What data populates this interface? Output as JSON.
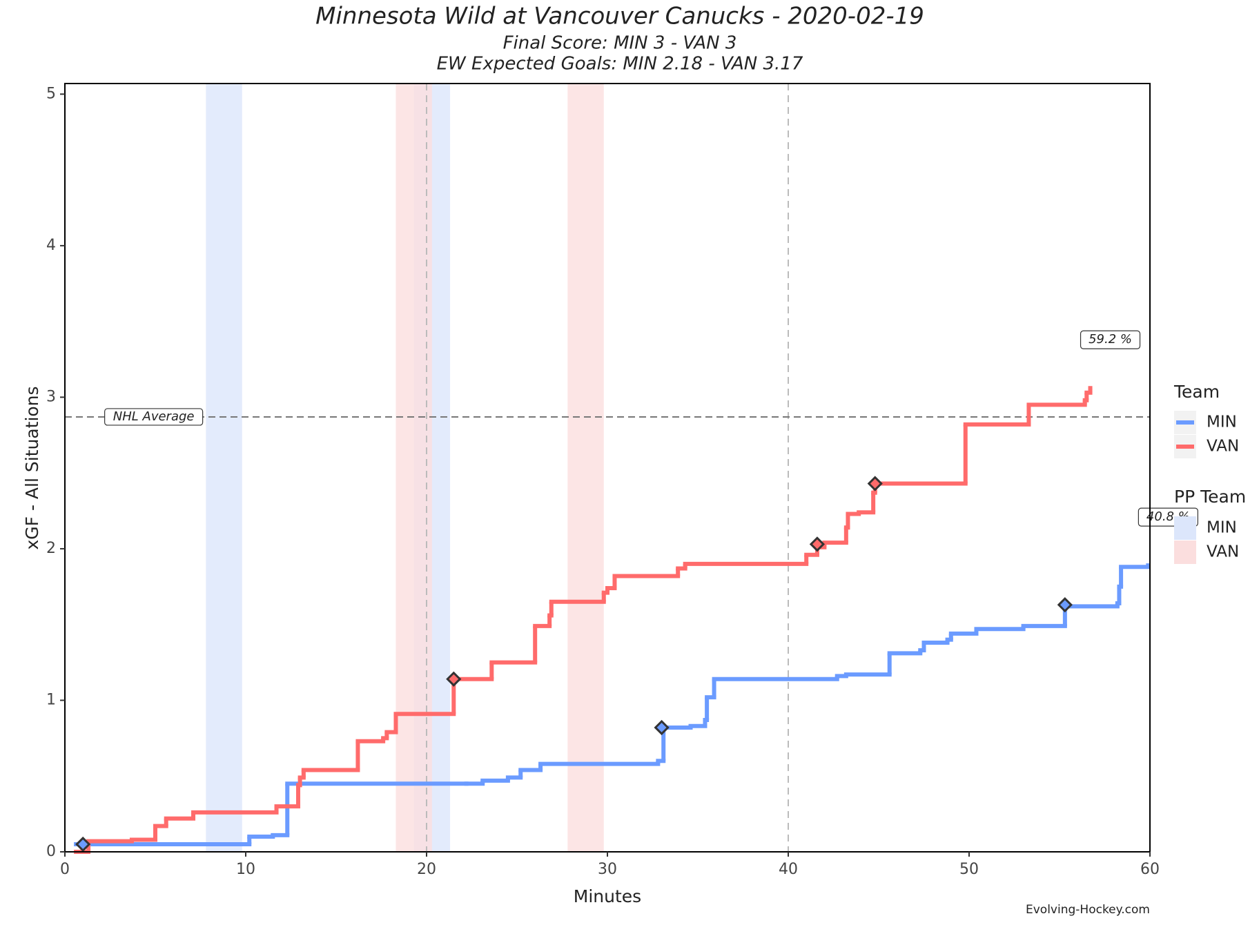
{
  "chart_data": {
    "type": "step",
    "title": "Minnesota Wild at Vancouver Canucks - 2020-02-19",
    "subtitle": [
      "Final Score: MIN 3 - VAN 3",
      "EW Expected Goals: MIN 2.18 - VAN 3.17"
    ],
    "x_label": "Minutes",
    "y_label": "xGF - All Situations",
    "xlim": [
      0,
      60
    ],
    "ylim": [
      0,
      5.07
    ],
    "xticks": [
      0,
      10,
      20,
      30,
      40,
      50,
      60
    ],
    "yticks": [
      0,
      1,
      2,
      3,
      4,
      5
    ],
    "legend_title": "Team",
    "series": [
      {
        "name": "MIN",
        "color": "#6b9bff",
        "x": [
          0.5,
          10.2,
          11.5,
          12.3,
          22.2,
          23.1,
          24.5,
          25.2,
          26.3,
          32.8,
          33.1,
          34.6,
          35.4,
          35.5,
          35.9,
          42.7,
          43.2,
          45.6,
          47.3,
          47.5,
          48.8,
          49.0,
          50.4,
          53.0,
          55.3,
          58.2,
          58.3,
          58.4,
          59.9
        ],
        "values": [
          0.05,
          0.1,
          0.11,
          0.45,
          0.45,
          0.47,
          0.49,
          0.54,
          0.58,
          0.6,
          0.82,
          0.83,
          0.87,
          1.02,
          1.14,
          1.16,
          1.17,
          1.31,
          1.33,
          1.38,
          1.4,
          1.44,
          1.47,
          1.49,
          1.62,
          1.64,
          1.75,
          1.88,
          1.89
        ],
        "goals": {
          "x": [
            1.0,
            33.0,
            55.3
          ],
          "values": [
            0.05,
            0.82,
            1.63
          ]
        },
        "share_label": "40.8 %"
      },
      {
        "name": "VAN",
        "color": "#ff6b6b",
        "x": [
          0.5,
          1.3,
          3.7,
          5.0,
          5.6,
          7.1,
          11.7,
          12.9,
          13.0,
          13.2,
          16.2,
          17.6,
          17.8,
          18.3,
          21.5,
          23.6,
          26.0,
          26.8,
          26.9,
          29.8,
          30.0,
          30.4,
          33.9,
          34.3,
          41.0,
          41.6,
          42.0,
          43.2,
          43.3,
          43.9,
          44.7,
          44.8,
          49.8,
          53.3,
          56.4,
          56.5,
          56.7
        ],
        "values": [
          0,
          0.07,
          0.08,
          0.17,
          0.22,
          0.26,
          0.3,
          0.44,
          0.49,
          0.54,
          0.73,
          0.75,
          0.79,
          0.91,
          1.14,
          1.25,
          1.49,
          1.56,
          1.65,
          1.71,
          1.74,
          1.82,
          1.87,
          1.9,
          1.96,
          2.01,
          2.04,
          2.14,
          2.23,
          2.24,
          2.37,
          2.43,
          2.82,
          2.95,
          2.98,
          3.03,
          3.06
        ],
        "goals": {
          "x": [
            21.5,
            41.6,
            44.8
          ],
          "values": [
            1.14,
            2.03,
            2.43
          ]
        },
        "share_label": "59.2 %"
      }
    ],
    "pp_team": {
      "title": "PP Team",
      "series": [
        {
          "name": "MIN",
          "color": "#dce6fb",
          "spans": [
            [
              7.8,
              9.8
            ],
            [
              19.3,
              21.3
            ]
          ]
        },
        {
          "name": "VAN",
          "color": "#fbdede",
          "spans": [
            [
              18.3,
              20.3
            ],
            [
              27.8,
              29.8
            ]
          ]
        }
      ]
    },
    "nhl_average": {
      "label": "NHL Average",
      "value": 2.87
    },
    "period_lines": [
      20,
      40
    ],
    "source": "Evolving-Hockey.com"
  }
}
